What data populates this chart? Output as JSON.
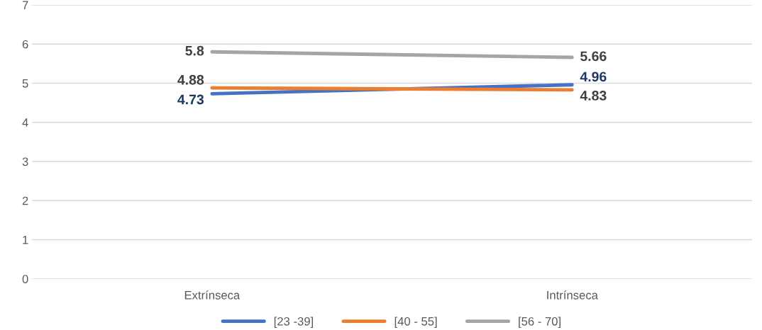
{
  "chart_data": {
    "type": "line",
    "categories": [
      "Extrínseca",
      "Intrínseca"
    ],
    "series": [
      {
        "name": "[23 -39]",
        "color": "#4472c4",
        "values": [
          4.73,
          4.96
        ]
      },
      {
        "name": "[40 - 55]",
        "color": "#ed7d31",
        "values": [
          4.88,
          4.83
        ]
      },
      {
        "name": "[56 - 70]",
        "color": "#a5a5a5",
        "values": [
          5.8,
          5.66
        ]
      }
    ],
    "ylim": [
      0,
      7
    ],
    "yticks": [
      0,
      1,
      2,
      3,
      4,
      5,
      6,
      7
    ],
    "grid": "y",
    "legend": "bottom",
    "data_labels": true,
    "marker": "none",
    "line_style": "solid"
  }
}
